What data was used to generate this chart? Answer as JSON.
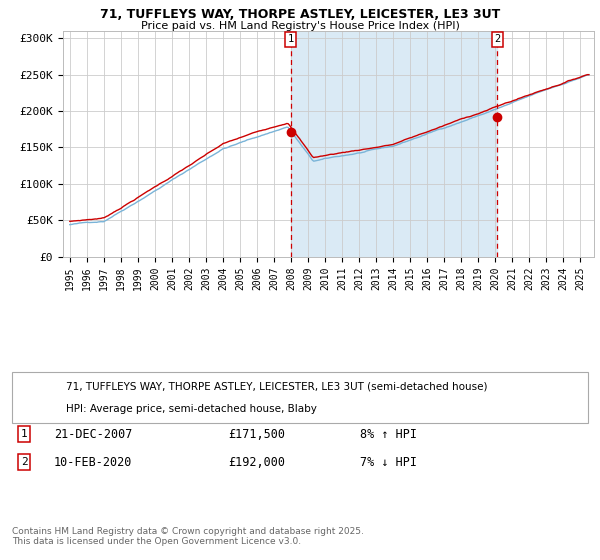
{
  "title1": "71, TUFFLEYS WAY, THORPE ASTLEY, LEICESTER, LE3 3UT",
  "title2": "Price paid vs. HM Land Registry's House Price Index (HPI)",
  "legend1": "71, TUFFLEYS WAY, THORPE ASTLEY, LEICESTER, LE3 3UT (semi-detached house)",
  "legend2": "HPI: Average price, semi-detached house, Blaby",
  "annotation1_date": "21-DEC-2007",
  "annotation1_price": "£171,500",
  "annotation1_hpi": "8% ↑ HPI",
  "annotation1_year": 2007.97,
  "annotation1_value": 171500,
  "annotation2_date": "10-FEB-2020",
  "annotation2_price": "£192,000",
  "annotation2_hpi": "7% ↓ HPI",
  "annotation2_year": 2020.12,
  "annotation2_value": 192000,
  "hpi_color": "#7ab4d8",
  "price_color": "#cc0000",
  "dot_color": "#cc0000",
  "vline_color": "#cc0000",
  "bg_highlight_color": "#daeaf5",
  "grid_color": "#cccccc",
  "ylim": [
    0,
    310000
  ],
  "yticks": [
    0,
    50000,
    100000,
    150000,
    200000,
    250000,
    300000
  ],
  "ytick_labels": [
    "£0",
    "£50K",
    "£100K",
    "£150K",
    "£200K",
    "£250K",
    "£300K"
  ],
  "footer": "Contains HM Land Registry data © Crown copyright and database right 2025.\nThis data is licensed under the Open Government Licence v3.0.",
  "xstart": 1995,
  "xend": 2025
}
